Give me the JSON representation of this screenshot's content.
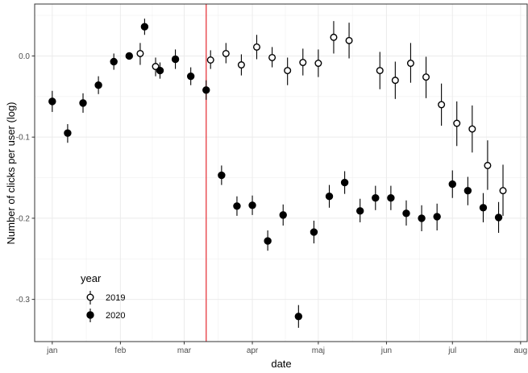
{
  "chart_data": {
    "type": "scatter",
    "xlabel": "date",
    "ylabel": "Number of clicks per user (log)",
    "x_ticks": [
      "jan",
      "feb",
      "mar",
      "apr",
      "maj",
      "jun",
      "jul",
      "aug"
    ],
    "x_tick_dates": [
      "2020-01-01",
      "2020-02-01",
      "2020-03-01",
      "2020-04-01",
      "2020-05-01",
      "2020-06-01",
      "2020-07-01",
      "2020-08-01"
    ],
    "y_ticks": [
      "0.0",
      "-0.1",
      "-0.2",
      "-0.3"
    ],
    "y_tick_values": [
      0.0,
      -0.1,
      -0.2,
      -0.3
    ],
    "xlim": [
      "2019-12-24",
      "2020-08-04"
    ],
    "ylim": [
      -0.352,
      0.064
    ],
    "grid": true,
    "theme": "bw",
    "vline": {
      "date": "2020-03-11",
      "color": "#e8464b"
    },
    "legend": {
      "title": "year",
      "position": "bottom-left"
    },
    "series": [
      {
        "name": "2019",
        "marker": "open-circle",
        "points": [
          {
            "date": "2020-02-10",
            "y": 0.003,
            "lo": -0.011,
            "hi": 0.016
          },
          {
            "date": "2020-02-17",
            "y": -0.013,
            "lo": -0.025,
            "hi": -0.002
          },
          {
            "date": "2020-03-13",
            "y": -0.005,
            "lo": -0.016,
            "hi": 0.007
          },
          {
            "date": "2020-03-20",
            "y": 0.003,
            "lo": -0.009,
            "hi": 0.016
          },
          {
            "date": "2020-03-27",
            "y": -0.011,
            "lo": -0.024,
            "hi": 0.002
          },
          {
            "date": "2020-04-03",
            "y": 0.011,
            "lo": -0.004,
            "hi": 0.026
          },
          {
            "date": "2020-04-10",
            "y": -0.002,
            "lo": -0.014,
            "hi": 0.011
          },
          {
            "date": "2020-04-17",
            "y": -0.018,
            "lo": -0.036,
            "hi": -0.002
          },
          {
            "date": "2020-04-24",
            "y": -0.008,
            "lo": -0.024,
            "hi": 0.009
          },
          {
            "date": "2020-05-01",
            "y": -0.009,
            "lo": -0.026,
            "hi": 0.008
          },
          {
            "date": "2020-05-08",
            "y": 0.023,
            "lo": 0.003,
            "hi": 0.043
          },
          {
            "date": "2020-05-15",
            "y": 0.019,
            "lo": -0.003,
            "hi": 0.041
          },
          {
            "date": "2020-05-29",
            "y": -0.018,
            "lo": -0.041,
            "hi": 0.005
          },
          {
            "date": "2020-06-05",
            "y": -0.03,
            "lo": -0.053,
            "hi": -0.007
          },
          {
            "date": "2020-06-12",
            "y": -0.009,
            "lo": -0.033,
            "hi": 0.016
          },
          {
            "date": "2020-06-19",
            "y": -0.026,
            "lo": -0.052,
            "hi": -0.001
          },
          {
            "date": "2020-06-26",
            "y": -0.06,
            "lo": -0.086,
            "hi": -0.034
          },
          {
            "date": "2020-07-03",
            "y": -0.083,
            "lo": -0.111,
            "hi": -0.056
          },
          {
            "date": "2020-07-10",
            "y": -0.09,
            "lo": -0.119,
            "hi": -0.061
          },
          {
            "date": "2020-07-17",
            "y": -0.135,
            "lo": -0.165,
            "hi": -0.104
          },
          {
            "date": "2020-07-24",
            "y": -0.166,
            "lo": -0.197,
            "hi": -0.134
          }
        ]
      },
      {
        "name": "2020",
        "marker": "filled-circle",
        "points": [
          {
            "date": "2020-01-01",
            "y": -0.056,
            "lo": -0.069,
            "hi": -0.043
          },
          {
            "date": "2020-01-08",
            "y": -0.095,
            "lo": -0.107,
            "hi": -0.084
          },
          {
            "date": "2020-01-15",
            "y": -0.058,
            "lo": -0.07,
            "hi": -0.046
          },
          {
            "date": "2020-01-22",
            "y": -0.036,
            "lo": -0.047,
            "hi": -0.025
          },
          {
            "date": "2020-01-29",
            "y": -0.007,
            "lo": -0.017,
            "hi": 0.003
          },
          {
            "date": "2020-02-05",
            "y": 0.0,
            "lo": 0.0,
            "hi": 0.0
          },
          {
            "date": "2020-02-12",
            "y": 0.036,
            "lo": 0.026,
            "hi": 0.046
          },
          {
            "date": "2020-02-19",
            "y": -0.018,
            "lo": -0.028,
            "hi": -0.008
          },
          {
            "date": "2020-02-26",
            "y": -0.004,
            "lo": -0.016,
            "hi": 0.008
          },
          {
            "date": "2020-03-04",
            "y": -0.025,
            "lo": -0.036,
            "hi": -0.014
          },
          {
            "date": "2020-03-11",
            "y": -0.042,
            "lo": -0.054,
            "hi": -0.03
          },
          {
            "date": "2020-03-18",
            "y": -0.147,
            "lo": -0.159,
            "hi": -0.135
          },
          {
            "date": "2020-03-25",
            "y": -0.185,
            "lo": -0.197,
            "hi": -0.173
          },
          {
            "date": "2020-04-01",
            "y": -0.184,
            "lo": -0.196,
            "hi": -0.172
          },
          {
            "date": "2020-04-08",
            "y": -0.228,
            "lo": -0.24,
            "hi": -0.215
          },
          {
            "date": "2020-04-15",
            "y": -0.196,
            "lo": -0.209,
            "hi": -0.183
          },
          {
            "date": "2020-04-22",
            "y": -0.321,
            "lo": -0.335,
            "hi": -0.307
          },
          {
            "date": "2020-04-29",
            "y": -0.217,
            "lo": -0.231,
            "hi": -0.203
          },
          {
            "date": "2020-05-06",
            "y": -0.173,
            "lo": -0.187,
            "hi": -0.159
          },
          {
            "date": "2020-05-13",
            "y": -0.156,
            "lo": -0.17,
            "hi": -0.142
          },
          {
            "date": "2020-05-20",
            "y": -0.191,
            "lo": -0.205,
            "hi": -0.176
          },
          {
            "date": "2020-05-27",
            "y": -0.175,
            "lo": -0.19,
            "hi": -0.16
          },
          {
            "date": "2020-06-03",
            "y": -0.175,
            "lo": -0.19,
            "hi": -0.16
          },
          {
            "date": "2020-06-10",
            "y": -0.194,
            "lo": -0.209,
            "hi": -0.178
          },
          {
            "date": "2020-06-17",
            "y": -0.2,
            "lo": -0.216,
            "hi": -0.184
          },
          {
            "date": "2020-06-24",
            "y": -0.198,
            "lo": -0.215,
            "hi": -0.182
          },
          {
            "date": "2020-07-01",
            "y": -0.158,
            "lo": -0.175,
            "hi": -0.141
          },
          {
            "date": "2020-07-08",
            "y": -0.166,
            "lo": -0.184,
            "hi": -0.149
          },
          {
            "date": "2020-07-15",
            "y": -0.187,
            "lo": -0.205,
            "hi": -0.169
          },
          {
            "date": "2020-07-22",
            "y": -0.199,
            "lo": -0.218,
            "hi": -0.18
          }
        ]
      }
    ]
  }
}
